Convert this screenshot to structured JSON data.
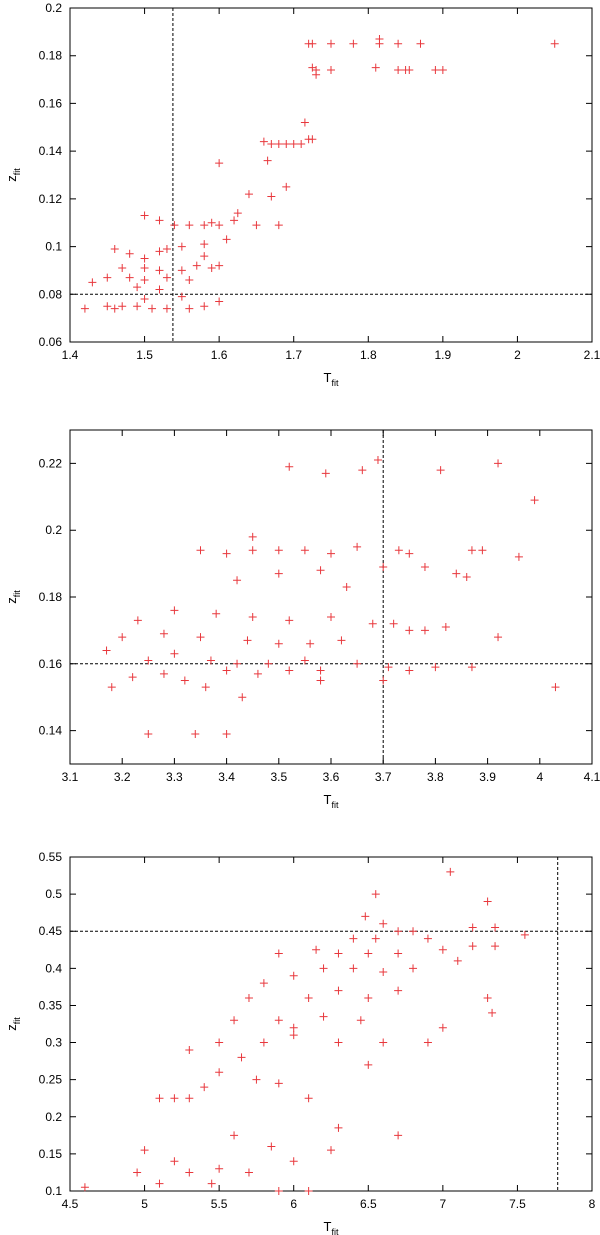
{
  "chart_data": [
    {
      "type": "scatter",
      "xlabel": "T",
      "xlabel_sub": "fit",
      "ylabel": "z",
      "ylabel_sub": "fit",
      "color": "#e8383d",
      "xlim": [
        1.4,
        2.1
      ],
      "xticks": [
        1.4,
        1.5,
        1.6,
        1.7,
        1.8,
        1.9,
        2,
        2.1
      ],
      "ylim": [
        0.06,
        0.2
      ],
      "yticks": [
        0.06,
        0.08,
        0.1,
        0.12,
        0.14,
        0.16,
        0.18,
        0.2
      ],
      "vline": 1.538,
      "hline": 0.08,
      "x": [
        1.72,
        1.725,
        1.75,
        1.78,
        1.815,
        1.815,
        1.84,
        1.87,
        2.05,
        1.725,
        1.73,
        1.75,
        1.81,
        1.84,
        1.85,
        1.855,
        1.89,
        1.9,
        1.73,
        1.715,
        1.72,
        1.725,
        1.66,
        1.67,
        1.68,
        1.69,
        1.7,
        1.71,
        1.665,
        1.6,
        1.69,
        1.67,
        1.64,
        1.5,
        1.52,
        1.54,
        1.56,
        1.58,
        1.59,
        1.6,
        1.62,
        1.625,
        1.61,
        1.58,
        1.55,
        1.53,
        1.52,
        1.46,
        1.48,
        1.5,
        1.47,
        1.5,
        1.52,
        1.55,
        1.57,
        1.59,
        1.6,
        1.45,
        1.43,
        1.5,
        1.53,
        1.56,
        1.49,
        1.52,
        1.55,
        1.5,
        1.47,
        1.46,
        1.49,
        1.51,
        1.53,
        1.56,
        1.58,
        1.42,
        1.45,
        1.6,
        1.65,
        1.68,
        1.58,
        1.48
      ],
      "values": [
        0.185,
        0.185,
        0.185,
        0.185,
        0.187,
        0.185,
        0.185,
        0.185,
        0.185,
        0.175,
        0.174,
        0.174,
        0.175,
        0.174,
        0.174,
        0.174,
        0.174,
        0.174,
        0.172,
        0.152,
        0.145,
        0.145,
        0.144,
        0.143,
        0.143,
        0.143,
        0.143,
        0.143,
        0.136,
        0.135,
        0.125,
        0.121,
        0.122,
        0.113,
        0.111,
        0.109,
        0.109,
        0.109,
        0.11,
        0.109,
        0.111,
        0.114,
        0.103,
        0.101,
        0.1,
        0.099,
        0.098,
        0.099,
        0.097,
        0.095,
        0.091,
        0.091,
        0.09,
        0.09,
        0.092,
        0.091,
        0.092,
        0.087,
        0.085,
        0.086,
        0.087,
        0.086,
        0.083,
        0.082,
        0.079,
        0.078,
        0.075,
        0.074,
        0.075,
        0.074,
        0.074,
        0.074,
        0.075,
        0.074,
        0.075,
        0.077,
        0.109,
        0.109,
        0.096,
        0.087
      ]
    },
    {
      "type": "scatter",
      "xlabel": "T",
      "xlabel_sub": "fit",
      "ylabel": "z",
      "ylabel_sub": "fit",
      "color": "#e8383d",
      "xlim": [
        3.1,
        4.1
      ],
      "xticks": [
        3.1,
        3.2,
        3.3,
        3.4,
        3.5,
        3.6,
        3.7,
        3.8,
        3.9,
        4,
        4.1
      ],
      "ylim": [
        0.13,
        0.23
      ],
      "yticks": [
        0.14,
        0.16,
        0.18,
        0.2,
        0.22
      ],
      "vline": 3.7,
      "hline": 0.16,
      "x": [
        3.52,
        3.59,
        3.66,
        3.69,
        3.81,
        3.92,
        3.99,
        3.96,
        4.03,
        3.45,
        3.35,
        3.4,
        3.45,
        3.5,
        3.55,
        3.6,
        3.65,
        3.73,
        3.75,
        3.87,
        3.89,
        3.7,
        3.78,
        3.42,
        3.5,
        3.58,
        3.63,
        3.84,
        3.86,
        3.3,
        3.38,
        3.45,
        3.52,
        3.6,
        3.68,
        3.72,
        3.82,
        3.23,
        3.2,
        3.28,
        3.35,
        3.44,
        3.5,
        3.56,
        3.62,
        3.75,
        3.78,
        3.92,
        3.17,
        3.25,
        3.3,
        3.37,
        3.42,
        3.48,
        3.55,
        3.65,
        3.71,
        3.8,
        3.87,
        3.18,
        3.22,
        3.28,
        3.32,
        3.36,
        3.4,
        3.46,
        3.52,
        3.58,
        3.7,
        3.75,
        3.25,
        3.34,
        3.4,
        3.43,
        3.58
      ],
      "values": [
        0.219,
        0.217,
        0.218,
        0.221,
        0.218,
        0.22,
        0.209,
        0.192,
        0.153,
        0.198,
        0.194,
        0.193,
        0.194,
        0.194,
        0.194,
        0.193,
        0.195,
        0.194,
        0.193,
        0.194,
        0.194,
        0.189,
        0.189,
        0.185,
        0.187,
        0.188,
        0.183,
        0.187,
        0.186,
        0.176,
        0.175,
        0.174,
        0.173,
        0.174,
        0.172,
        0.172,
        0.171,
        0.173,
        0.168,
        0.169,
        0.168,
        0.167,
        0.166,
        0.166,
        0.167,
        0.17,
        0.17,
        0.168,
        0.164,
        0.161,
        0.163,
        0.161,
        0.16,
        0.16,
        0.161,
        0.16,
        0.159,
        0.159,
        0.159,
        0.153,
        0.156,
        0.157,
        0.155,
        0.153,
        0.158,
        0.157,
        0.158,
        0.158,
        0.155,
        0.158,
        0.139,
        0.139,
        0.139,
        0.15,
        0.155
      ]
    },
    {
      "type": "scatter",
      "xlabel": "T",
      "xlabel_sub": "fit",
      "ylabel": "z",
      "ylabel_sub": "fit",
      "color": "#e8383d",
      "xlim": [
        4.5,
        8
      ],
      "xticks": [
        4.5,
        5,
        5.5,
        6,
        6.5,
        7,
        7.5,
        8
      ],
      "ylim": [
        0.1,
        0.55
      ],
      "yticks": [
        0.1,
        0.15,
        0.2,
        0.25,
        0.3,
        0.35,
        0.4,
        0.45,
        0.5,
        0.55
      ],
      "vline": 7.77,
      "hline": 0.45,
      "x": [
        7.05,
        6.55,
        7.3,
        6.48,
        6.6,
        7.2,
        7.35,
        7.55,
        6.7,
        6.8,
        6.4,
        6.55,
        6.9,
        5.9,
        6.15,
        6.3,
        6.5,
        6.7,
        7.0,
        7.2,
        7.35,
        5.8,
        6.0,
        6.2,
        6.4,
        6.6,
        6.8,
        7.1,
        5.7,
        6.1,
        6.3,
        6.5,
        6.7,
        5.6,
        5.9,
        6.0,
        6.2,
        6.45,
        7.3,
        7.33,
        5.8,
        6.0,
        6.3,
        6.6,
        6.9,
        7.0,
        5.5,
        5.3,
        5.65,
        6.5,
        5.5,
        5.75,
        5.4,
        5.3,
        5.1,
        5.2,
        6.1,
        5.9,
        6.3,
        5.6,
        6.7,
        5.85,
        6.25,
        5.0,
        5.2,
        5.3,
        4.95,
        5.5,
        5.7,
        6.0,
        5.1,
        5.45,
        4.6,
        5.9,
        6.1
      ],
      "values": [
        0.53,
        0.5,
        0.49,
        0.47,
        0.46,
        0.455,
        0.455,
        0.445,
        0.45,
        0.45,
        0.44,
        0.44,
        0.44,
        0.42,
        0.425,
        0.42,
        0.42,
        0.42,
        0.425,
        0.43,
        0.43,
        0.38,
        0.39,
        0.4,
        0.4,
        0.395,
        0.4,
        0.41,
        0.36,
        0.36,
        0.37,
        0.36,
        0.37,
        0.33,
        0.33,
        0.32,
        0.335,
        0.33,
        0.36,
        0.34,
        0.3,
        0.31,
        0.3,
        0.3,
        0.3,
        0.32,
        0.3,
        0.29,
        0.28,
        0.27,
        0.26,
        0.25,
        0.24,
        0.225,
        0.225,
        0.225,
        0.225,
        0.245,
        0.185,
        0.175,
        0.175,
        0.16,
        0.155,
        0.155,
        0.14,
        0.125,
        0.125,
        0.13,
        0.125,
        0.14,
        0.11,
        0.11,
        0.105,
        0.1,
        0.1
      ]
    }
  ]
}
